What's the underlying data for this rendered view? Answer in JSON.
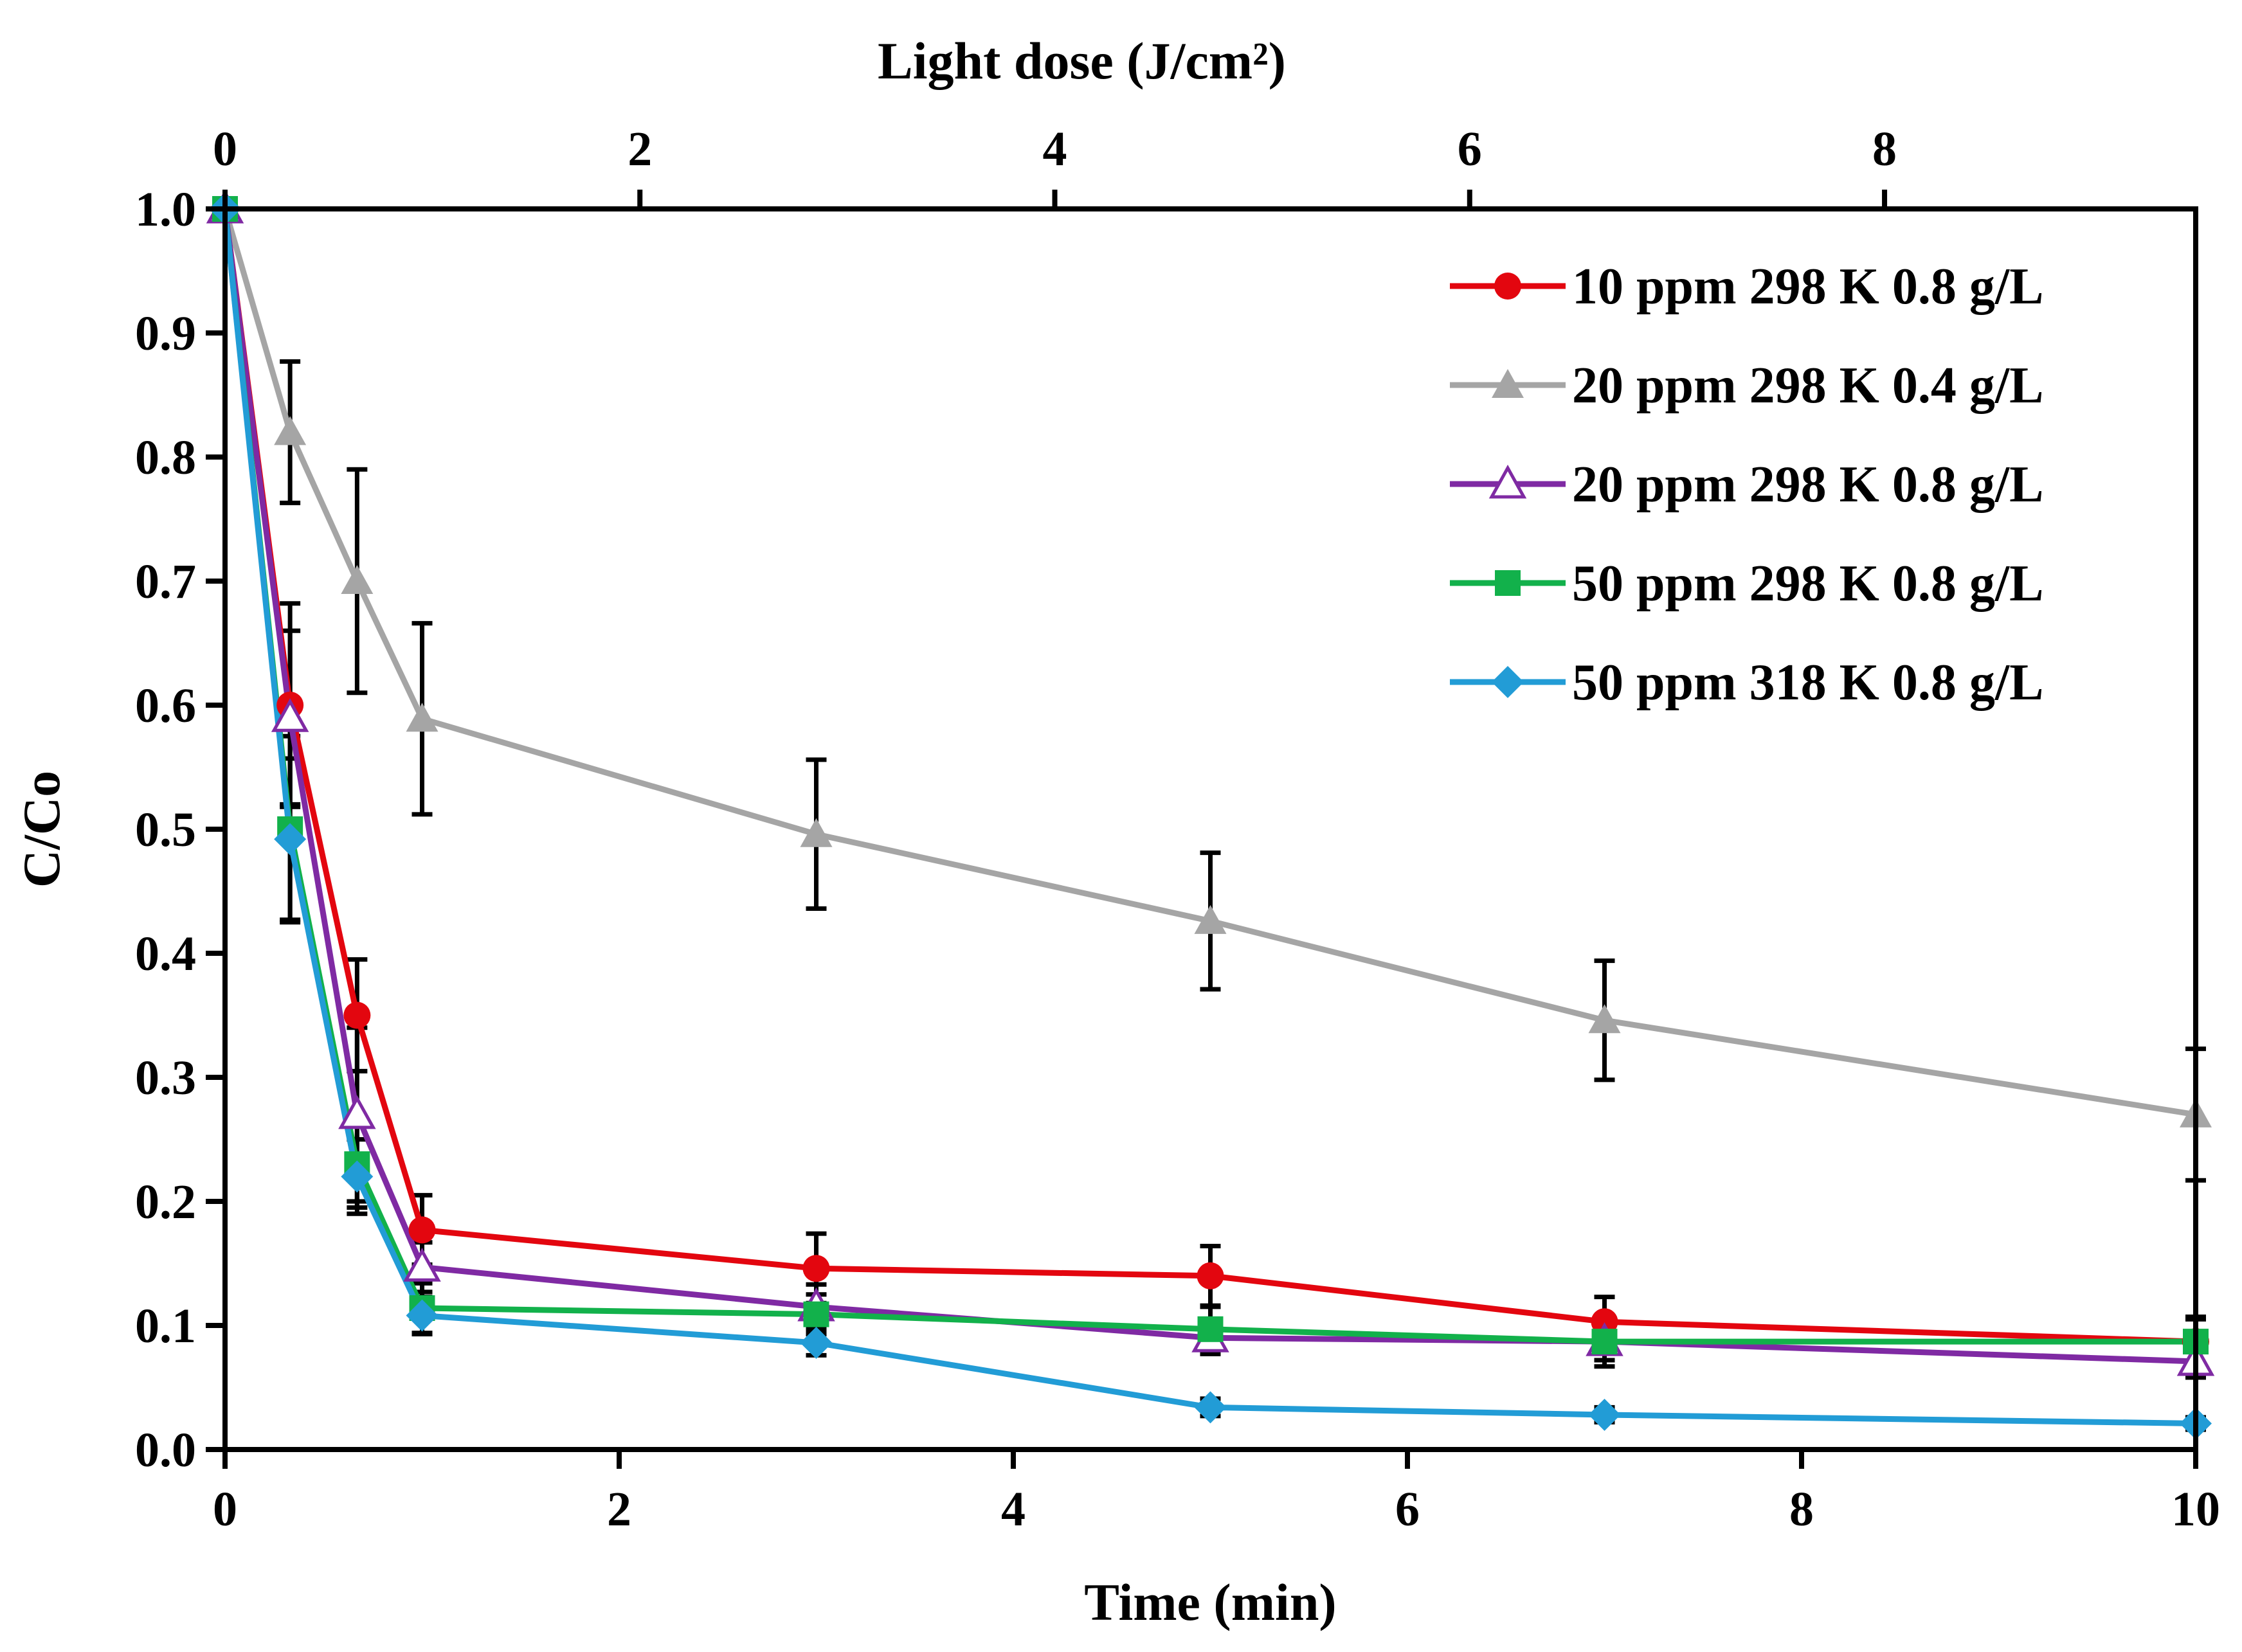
{
  "chart_data": {
    "type": "line",
    "xlabel": "Time (min)",
    "ylabel": "C/Co",
    "top_xlabel": "Light dose (J/cm²)",
    "xlim": [
      0,
      10
    ],
    "ylim": [
      0,
      1.0
    ],
    "top_xlim": [
      0,
      9.5
    ],
    "x_ticks": [
      "0",
      "2",
      "4",
      "6",
      "8",
      "10"
    ],
    "top_x_ticks": [
      "0",
      "2",
      "4",
      "6",
      "8"
    ],
    "y_ticks": [
      "0.0",
      "0.1",
      "0.2",
      "0.3",
      "0.4",
      "0.5",
      "0.6",
      "0.7",
      "0.8",
      "0.9",
      "1.0"
    ],
    "x": [
      0,
      0.33,
      0.67,
      1,
      3,
      5,
      7,
      10
    ],
    "legend_position": "top-right",
    "series": [
      {
        "name": "10 ppm 298 K 0.8 g/L",
        "color": "#e3060f",
        "marker": "circle",
        "values": [
          1.0,
          0.6,
          0.35,
          0.177,
          0.146,
          0.14,
          0.103,
          0.087
        ],
        "errors": [
          0,
          0.082,
          0.045,
          0.028,
          0.028,
          0.024,
          0.02,
          0.018
        ]
      },
      {
        "name": "20 ppm 298 K 0.4 g/L",
        "color": "#a5a5a5",
        "marker": "triangle",
        "values": [
          1.0,
          0.82,
          0.7,
          0.589,
          0.496,
          0.426,
          0.346,
          0.27
        ],
        "errors": [
          0,
          0.057,
          0.09,
          0.077,
          0.06,
          0.055,
          0.048,
          0.053
        ]
      },
      {
        "name": "20 ppm 298 K 0.8 g/L",
        "color": "#7f2aa3",
        "marker": "triangle-open",
        "values": [
          1.0,
          0.59,
          0.27,
          0.147,
          0.115,
          0.09,
          0.087,
          0.071
        ],
        "errors": [
          0,
          0.07,
          0.07,
          0.02,
          0.018,
          0.013,
          0.015,
          0.013
        ]
      },
      {
        "name": "50 ppm 298 K 0.8 g/L",
        "color": "#12b14b",
        "marker": "square",
        "values": [
          1.0,
          0.5,
          0.23,
          0.114,
          0.109,
          0.097,
          0.087,
          0.087
        ],
        "errors": [
          0,
          0.075,
          0.035,
          0.02,
          0.016,
          0.018,
          0.02,
          0.02
        ]
      },
      {
        "name": "50 ppm 318 K 0.8 g/L",
        "color": "#229cd6",
        "marker": "diamond",
        "values": [
          1.0,
          0.492,
          0.22,
          0.108,
          0.086,
          0.034,
          0.028,
          0.021
        ],
        "errors": [
          0,
          0.065,
          0.03,
          0.015,
          0.01,
          0.007,
          0.006,
          0.005
        ]
      }
    ]
  }
}
